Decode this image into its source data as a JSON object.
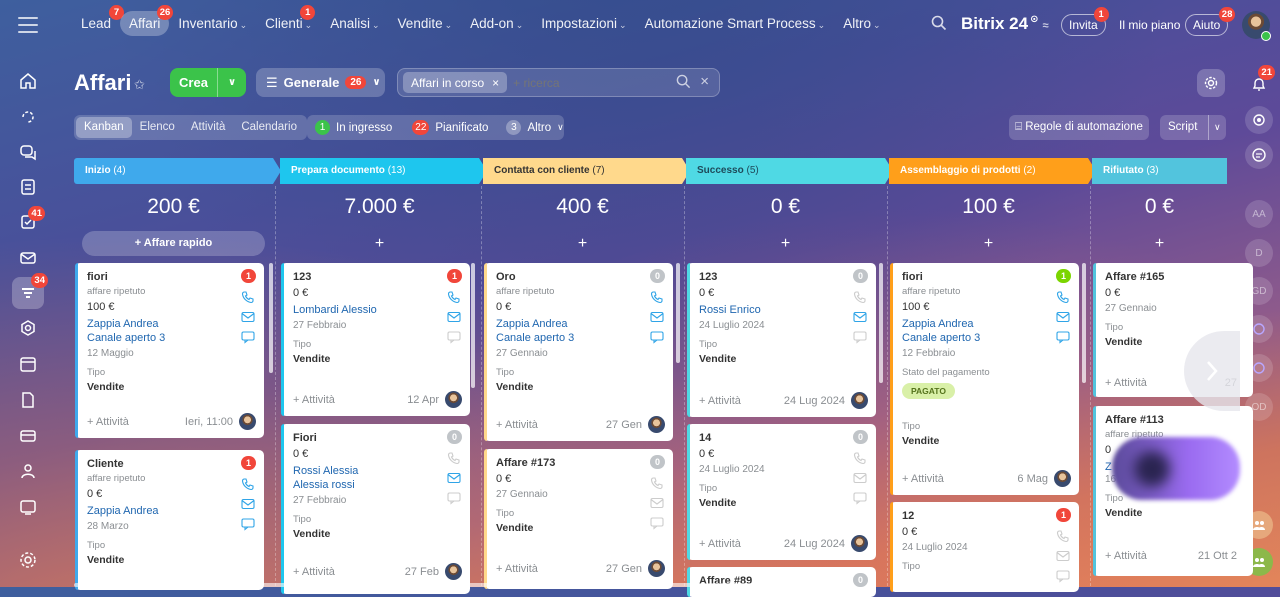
{
  "nav": {
    "items": [
      {
        "label": "Lead",
        "badge": "7"
      },
      {
        "label": "Affari",
        "badge": "26"
      },
      {
        "label": "Inventario",
        "caret": true
      },
      {
        "label": "Clienti",
        "badge": "1",
        "caret": true
      },
      {
        "label": "Analisi",
        "caret": true
      },
      {
        "label": "Vendite",
        "caret": true
      },
      {
        "label": "Add-on",
        "caret": true
      },
      {
        "label": "Impostazioni",
        "caret": true
      },
      {
        "label": "Automazione Smart Process",
        "caret": true
      },
      {
        "label": "Altro",
        "caret": true
      }
    ]
  },
  "top": {
    "brand": "Bitrix 24",
    "invita": "Invita",
    "invita_badge": "1",
    "piano": "Il mio piano",
    "aiuto": "Aiuto",
    "aiuto_badge": "28"
  },
  "leftbar": {
    "tasks_badge": "41",
    "crm_badge": "34"
  },
  "rightbar": {
    "notif_badge": "21",
    "avatars": [
      "AA",
      "D",
      "GD",
      "OD"
    ]
  },
  "page": {
    "title": "Affari",
    "crea": "Crea",
    "generale": "Generale",
    "generale_badge": "26",
    "filter_chip": "Affari in corso",
    "search_placeholder": "+ ricerca"
  },
  "views": [
    "Kanban",
    "Elenco",
    "Attività",
    "Calendario"
  ],
  "counters": {
    "in_ingresso_count": "1",
    "in_ingresso": "In ingresso",
    "pianificato_count": "22",
    "pianificato": "Pianificato",
    "altro_count": "3",
    "altro": "Altro"
  },
  "automation": {
    "regole": "Regole di automazione",
    "script": "Script"
  },
  "colors": {
    "inizio": "#3fa9ec",
    "prepara": "#1ec6ee",
    "contatta": "#ffd98c",
    "successo": "#4fd9e4",
    "assemblaggio": "#ff9f1a",
    "rifiutato": "#52c4dd"
  },
  "columns": [
    {
      "name": "Inizio",
      "count": "(4)",
      "total": "200 €",
      "quick": "+ Affare rapido",
      "cards": [
        {
          "title": "fiori",
          "sub": "affare ripetuto",
          "amount": "100 €",
          "contacts": [
            "Zappia Andrea",
            "Canale aperto 3"
          ],
          "date": "12 Maggio",
          "tipo_label": "Tipo",
          "tipo": "Vendite",
          "activity": "+ Attività",
          "when": "Ieri, 11:00",
          "badge": "1"
        },
        {
          "title": "Cliente",
          "sub": "affare ripetuto",
          "amount": "0 €",
          "contacts": [
            "Zappia Andrea"
          ],
          "date": "28 Marzo",
          "tipo_label": "Tipo",
          "tipo": "Vendite",
          "badge": "1"
        }
      ]
    },
    {
      "name": "Prepara documento",
      "count": "(13)",
      "total": "7.000 €",
      "quick": "+",
      "cards": [
        {
          "title": "123",
          "amount": "0 €",
          "contacts": [
            "Lombardi Alessio"
          ],
          "date": "27 Febbraio",
          "tipo_label": "Tipo",
          "tipo": "Vendite",
          "activity": "+ Attività",
          "when": "12 Apr",
          "badge": "1"
        },
        {
          "title": "Fiori",
          "amount": "0 €",
          "contacts": [
            "Rossi Alessia",
            "Alessia rossi"
          ],
          "date": "27 Febbraio",
          "tipo_label": "Tipo",
          "tipo": "Vendite",
          "activity": "+ Attività",
          "when": "27 Feb",
          "badge": "0"
        }
      ]
    },
    {
      "name": "Contatta con cliente",
      "count": "(7)",
      "total": "400 €",
      "quick": "+",
      "cards": [
        {
          "title": "Oro",
          "sub": "affare ripetuto",
          "amount": "0 €",
          "contacts": [
            "Zappia Andrea",
            "Canale aperto 3"
          ],
          "date": "27 Gennaio",
          "tipo_label": "Tipo",
          "tipo": "Vendite",
          "activity": "+ Attività",
          "when": "27 Gen",
          "badge": "0"
        },
        {
          "title": "Affare #173",
          "amount": "0 €",
          "date": "27 Gennaio",
          "tipo_label": "Tipo",
          "tipo": "Vendite",
          "activity": "+ Attività",
          "when": "27 Gen",
          "badge": "0"
        }
      ]
    },
    {
      "name": "Successo",
      "count": "(5)",
      "total": "0 €",
      "quick": "+",
      "cards": [
        {
          "title": "123",
          "amount": "0 €",
          "contacts": [
            "Rossi Enrico"
          ],
          "date": "24 Luglio 2024",
          "tipo_label": "Tipo",
          "tipo": "Vendite",
          "activity": "+ Attività",
          "when": "24 Lug 2024",
          "badge": "0"
        },
        {
          "title": "14",
          "amount": "0 €",
          "date": "24 Luglio 2024",
          "tipo_label": "Tipo",
          "tipo": "Vendite",
          "activity": "+ Attività",
          "when": "24 Lug 2024",
          "badge": "0"
        },
        {
          "title": "Affare #89",
          "badge": "0"
        }
      ]
    },
    {
      "name": "Assemblaggio di prodotti",
      "count": "(2)",
      "total": "100 €",
      "quick": "+",
      "cards": [
        {
          "title": "fiori",
          "sub": "affare ripetuto",
          "amount": "100 €",
          "contacts": [
            "Zappia Andrea",
            "Canale aperto 3"
          ],
          "date": "12 Febbraio",
          "pay_label": "Stato del pagamento",
          "pay": "PAGATO",
          "tipo_label": "Tipo",
          "tipo": "Vendite",
          "activity": "+ Attività",
          "when": "6 Mag",
          "badge": "1"
        },
        {
          "title": "12",
          "amount": "0 €",
          "date": "24 Luglio 2024",
          "tipo_label": "Tipo",
          "badge": "1"
        }
      ]
    },
    {
      "name": "Rifiutato",
      "count": "(3)",
      "total": "0 €",
      "quick": "+",
      "cards": [
        {
          "title": "Affare #165",
          "amount": "0 €",
          "date": "27 Gennaio",
          "tipo_label": "Tipo",
          "tipo": "Vendite",
          "activity": "+ Attività",
          "when": "27"
        },
        {
          "title": "Affare #113",
          "sub": "affare ripetuto",
          "amount": "0",
          "contact_partial": "Z",
          "date_partial": "16",
          "tipo_label": "Tipo",
          "tipo": "Vendite",
          "activity": "+ Attività",
          "when": "21 Ott 2"
        }
      ]
    }
  ]
}
